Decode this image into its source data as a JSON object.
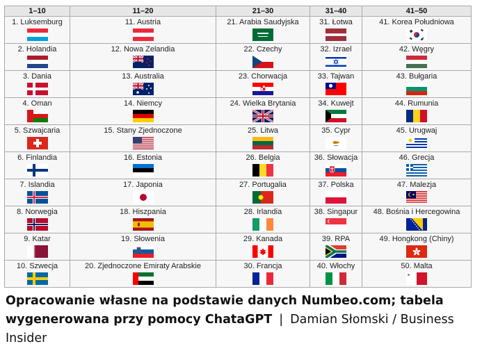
{
  "table": {
    "headers": [
      "1–10",
      "11–20",
      "21–30",
      "31–40",
      "41–50"
    ],
    "rows": [
      [
        {
          "label": "1. Luksemburg",
          "flag": "luxembourg-flag"
        },
        {
          "label": "11. Austria",
          "flag": "austria-flag"
        },
        {
          "label": "21. Arabia Saudyjska",
          "flag": "saudi-arabia-flag"
        },
        {
          "label": "31. Łotwa",
          "flag": "latvia-flag"
        },
        {
          "label": "41. Korea Południowa",
          "flag": "south-korea-flag"
        }
      ],
      [
        {
          "label": "2. Holandia",
          "flag": "netherlands-flag"
        },
        {
          "label": "12. Nowa Zelandia",
          "flag": "new-zealand-flag"
        },
        {
          "label": "22. Czechy",
          "flag": "czechia-flag"
        },
        {
          "label": "32. Izrael",
          "flag": "israel-flag"
        },
        {
          "label": "42. Węgry",
          "flag": "hungary-flag"
        }
      ],
      [
        {
          "label": "3. Dania",
          "flag": "denmark-flag"
        },
        {
          "label": "13. Australia",
          "flag": "australia-flag"
        },
        {
          "label": "23. Chorwacja",
          "flag": "croatia-flag"
        },
        {
          "label": "33. Tajwan",
          "flag": "taiwan-flag"
        },
        {
          "label": "43. Bułgaria",
          "flag": "bulgaria-flag"
        }
      ],
      [
        {
          "label": "4. Oman",
          "flag": "oman-flag"
        },
        {
          "label": "14. Niemcy",
          "flag": "germany-flag"
        },
        {
          "label": "24. Wielka Brytania",
          "flag": "uk-flag"
        },
        {
          "label": "34. Kuwejt",
          "flag": "kuwait-flag"
        },
        {
          "label": "44. Rumunia",
          "flag": "romania-flag"
        }
      ],
      [
        {
          "label": "5. Szwajcaria",
          "flag": "switzerland-flag"
        },
        {
          "label": "15. Stany Zjednoczone",
          "flag": "usa-flag"
        },
        {
          "label": "25. Litwa",
          "flag": "lithuania-flag"
        },
        {
          "label": "35. Cypr",
          "flag": "cyprus-flag"
        },
        {
          "label": "45. Urugwaj",
          "flag": "uruguay-flag"
        }
      ],
      [
        {
          "label": "6. Finlandia",
          "flag": "finland-flag"
        },
        {
          "label": "16. Estonia",
          "flag": "estonia-flag"
        },
        {
          "label": "26. Belgia",
          "flag": "belgium-flag"
        },
        {
          "label": "36. Słowacja",
          "flag": "slovakia-flag"
        },
        {
          "label": "46. Grecja",
          "flag": "greece-flag"
        }
      ],
      [
        {
          "label": "7. Islandia",
          "flag": "iceland-flag"
        },
        {
          "label": "17. Japonia",
          "flag": "japan-flag"
        },
        {
          "label": "27. Portugalia",
          "flag": "portugal-flag"
        },
        {
          "label": "37. Polska",
          "flag": "poland-flag"
        },
        {
          "label": "47. Malezja",
          "flag": "malaysia-flag"
        }
      ],
      [
        {
          "label": "8. Norwegia",
          "flag": "norway-flag"
        },
        {
          "label": "18. Hiszpania",
          "flag": "spain-flag"
        },
        {
          "label": "28. Irlandia",
          "flag": "ireland-flag"
        },
        {
          "label": "38. Singapur",
          "flag": "singapore-flag"
        },
        {
          "label": "48. Bośnia i Hercegowina",
          "flag": "bosnia-flag"
        }
      ],
      [
        {
          "label": "9. Katar",
          "flag": "qatar-flag"
        },
        {
          "label": "19. Słowenia",
          "flag": "slovenia-flag"
        },
        {
          "label": "29. Kanada",
          "flag": "canada-flag"
        },
        {
          "label": "39. RPA",
          "flag": "south-africa-flag"
        },
        {
          "label": "49. Hongkong (Chiny)",
          "flag": "hong-kong-flag"
        }
      ],
      [
        {
          "label": "10. Szwecja",
          "flag": "sweden-flag"
        },
        {
          "label": "20. Zjednoczone Emiraty Arabskie",
          "flag": "uae-flag"
        },
        {
          "label": "30. Francja",
          "flag": "france-flag"
        },
        {
          "label": "40. Włochy",
          "flag": "italy-flag"
        },
        {
          "label": "50. Malta",
          "flag": "malta-flag"
        }
      ]
    ]
  },
  "caption": {
    "bold": "Opracowanie własne na podstawie danych Numbeo.com; tabela wygenerowana przy pomocy ChataGPT",
    "separator": "|",
    "credit": "Damian Słomski / Business Insider"
  }
}
